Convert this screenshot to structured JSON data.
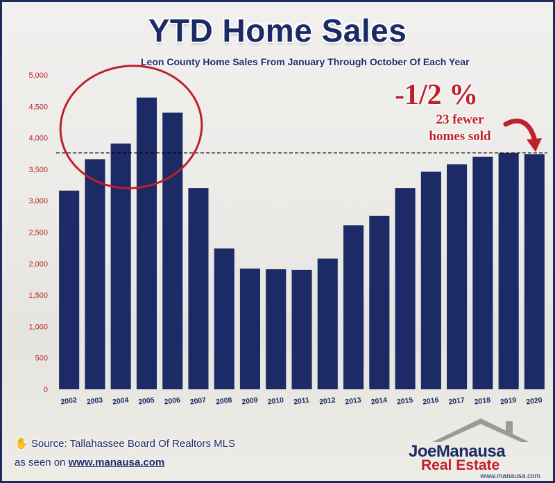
{
  "title": "YTD Home Sales",
  "subtitle": "Leon County Home Sales From January Through October Of Each Year",
  "annotation": {
    "percent": "-1/2 %",
    "line1": "23 fewer",
    "line2": "homes sold"
  },
  "source": "Source: Tallahassee Board Of Realtors MLS",
  "seen_on_prefix": "as seen on",
  "seen_on_url": "www.manausa.com",
  "logo": {
    "name_part1": "Joe",
    "name_part2": "Manausa",
    "subline": "Real Estate",
    "web": "www.manausa.com"
  },
  "colors": {
    "bar": "#1c2a66",
    "accent": "#c0202a",
    "tick_y": "#c0202a",
    "tick_x": "#1c2a66"
  },
  "chart_data": {
    "type": "bar",
    "title": "YTD Home Sales",
    "subtitle": "Leon County Home Sales From January Through October Of Each Year",
    "categories": [
      "2002",
      "2003",
      "2004",
      "2005",
      "2006",
      "2007",
      "2008",
      "2009",
      "2010",
      "2011",
      "2012",
      "2013",
      "2014",
      "2015",
      "2016",
      "2017",
      "2018",
      "2019",
      "2020"
    ],
    "values": [
      3160,
      3660,
      3910,
      4640,
      4400,
      3200,
      2240,
      1920,
      1910,
      1900,
      2080,
      2610,
      2760,
      3200,
      3460,
      3580,
      3700,
      3760,
      3740
    ],
    "ylim": [
      0,
      5000
    ],
    "yticks": [
      0,
      500,
      1000,
      1500,
      2000,
      2500,
      3000,
      3500,
      4000,
      4500,
      5000
    ],
    "ytick_labels": [
      "0",
      "500",
      "1,000",
      "1,500",
      "2,000",
      "2,500",
      "3,000",
      "3,500",
      "4,000",
      "4,500",
      "5,000"
    ],
    "reference_line": 3760,
    "highlight_categories": [
      "2003",
      "2004",
      "2005",
      "2006"
    ],
    "grid": false
  }
}
